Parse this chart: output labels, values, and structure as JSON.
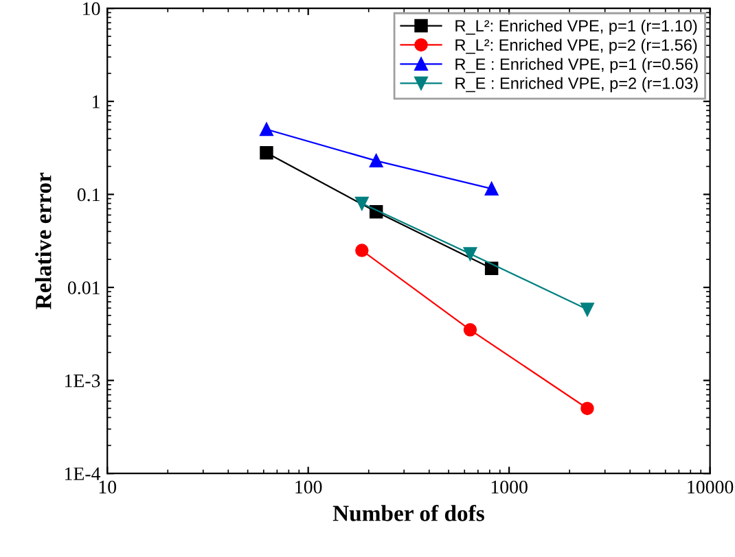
{
  "chart_data": {
    "type": "line",
    "xlabel": "Number of dofs",
    "ylabel": "Relative error",
    "log": "xy",
    "grid": false,
    "legend": "top right",
    "xlim": [
      10,
      10000
    ],
    "xticks": [
      10,
      100,
      1000,
      10000
    ],
    "ylim": [
      0.0001,
      10
    ],
    "yticks": [
      {
        "value": 0.0001,
        "label": "1E-4"
      },
      {
        "value": 0.001,
        "label": "1E-3"
      },
      0.01,
      0.1,
      1,
      10
    ],
    "series": [
      {
        "name": "R_L²: Enriched VPE, p=1 (r=1.10)",
        "color": "#000000",
        "marker": "square",
        "x": [
          62,
          218,
          818
        ],
        "values": [
          0.28,
          0.065,
          0.016
        ]
      },
      {
        "name": "R_L²: Enriched VPE, p=2 (r=1.56)",
        "color": "#ff0000",
        "marker": "circle",
        "x": [
          185,
          640,
          2450
        ],
        "values": [
          0.025,
          0.0035,
          0.0005
        ]
      },
      {
        "name": "R_E : Enriched VPE, p=1 (r=0.56)",
        "color": "#0000ff",
        "marker": "triangle",
        "x": [
          62,
          218,
          818
        ],
        "values": [
          0.5,
          0.23,
          0.115
        ]
      },
      {
        "name": "R_E : Enriched VPE, p=2 (r=1.03)",
        "color": "#008080",
        "marker": "triangle_down",
        "x": [
          185,
          640,
          2450
        ],
        "values": [
          0.08,
          0.023,
          0.0058
        ]
      }
    ]
  }
}
